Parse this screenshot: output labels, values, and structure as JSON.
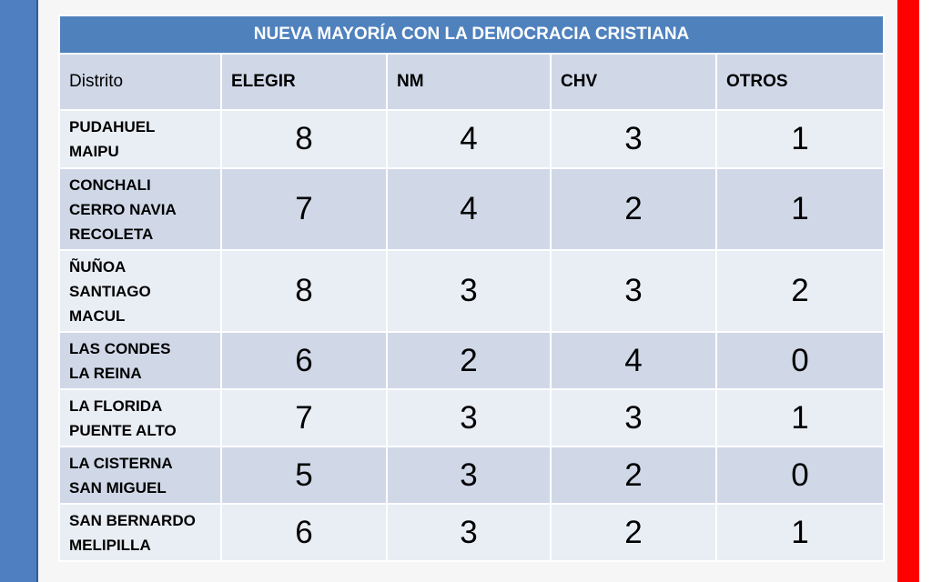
{
  "table": {
    "title": "NUEVA MAYORÍA CON LA DEMOCRACIA CRISTIANA",
    "headers": [
      "Distrito",
      "ELEGIR",
      "NM",
      "CHV",
      "OTROS"
    ],
    "rows": [
      {
        "district": "PUDAHUEL\nMAIPU",
        "elegir": "8",
        "nm": "4",
        "chv": "3",
        "otros": "1"
      },
      {
        "district": "CONCHALI\nCERRO NAVIA\nRECOLETA",
        "elegir": "7",
        "nm": "4",
        "chv": "2",
        "otros": "1"
      },
      {
        "district": "ÑUÑOA\nSANTIAGO\nMACUL",
        "elegir": "8",
        "nm": "3",
        "chv": "3",
        "otros": "2"
      },
      {
        "district": "LAS CONDES\nLA REINA",
        "elegir": "6",
        "nm": "2",
        "chv": "4",
        "otros": "0"
      },
      {
        "district": "LA FLORIDA\nPUENTE ALTO",
        "elegir": "7",
        "nm": "3",
        "chv": "3",
        "otros": "1"
      },
      {
        "district": "LA CISTERNA\nSAN MIGUEL",
        "elegir": "5",
        "nm": "3",
        "chv": "2",
        "otros": "0"
      },
      {
        "district": "SAN BERNARDO\nMELIPILLA",
        "elegir": "6",
        "nm": "3",
        "chv": "2",
        "otros": "1"
      }
    ]
  },
  "colors": {
    "header": "#4f81bd",
    "row_dark": "#d0d8e8",
    "row_light": "#e9edf4",
    "left_bar": "#4f7fc0",
    "right_bar": "#ff0000"
  }
}
